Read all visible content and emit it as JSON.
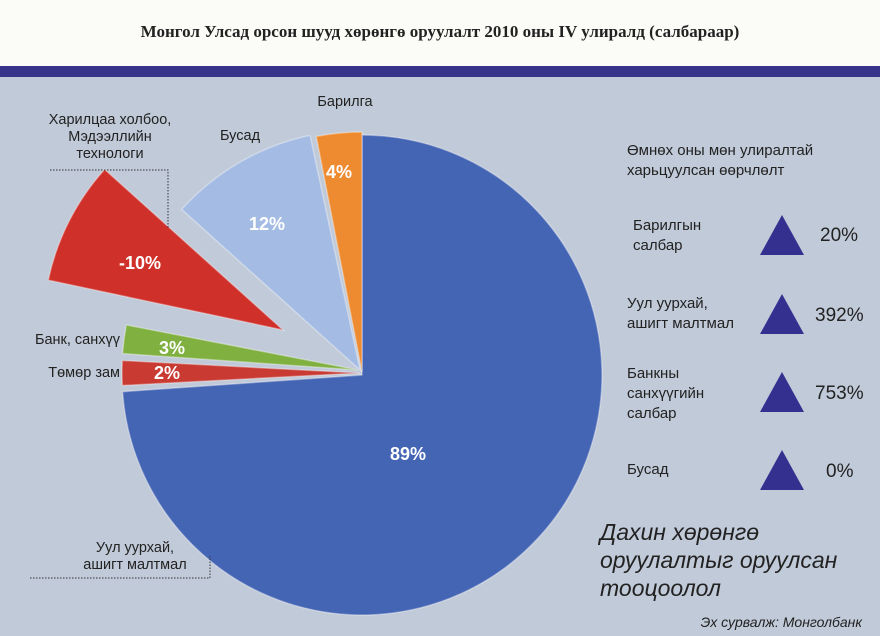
{
  "chart_data": {
    "type": "pie",
    "title": "Монгол Улсад орсон шууд хөрөнгө оруулалт 2010 оны IV улиралд (салбараар)",
    "slices": [
      {
        "name": "Уул уурхай, ашигт малтмал",
        "label": "89%",
        "value": 89,
        "color": "#4464b4"
      },
      {
        "name": "Төмөр зам",
        "label": "2%",
        "value": 2,
        "color": "#c83a32"
      },
      {
        "name": "Банк, санхүү",
        "label": "3%",
        "value": 3,
        "color": "#7fb040"
      },
      {
        "name": "Харилцаа холбоо, Мэдээллийн технологи",
        "label": "-10%",
        "value": -10,
        "color": "#d0302a"
      },
      {
        "name": "Бусад",
        "label": "12%",
        "value": 12,
        "color": "#a4bce4"
      },
      {
        "name": "Барилга",
        "label": "4%",
        "value": 4,
        "color": "#ee8a30"
      }
    ]
  },
  "changes": {
    "title_line1": "Өмнөх оны мөн улиралтай",
    "title_line2": "харьцуулсан өөрчлөлт",
    "items": [
      {
        "line1": "Барилгын",
        "line2": "салбар",
        "line3": "",
        "value": "20%",
        "direction": "up"
      },
      {
        "line1": "Уул уурхай,",
        "line2": "ашигт малтмал",
        "line3": "",
        "value": "392%",
        "direction": "up"
      },
      {
        "line1": "Банкны",
        "line2": "санхүүгийн",
        "line3": "салбар",
        "value": "753%",
        "direction": "up"
      },
      {
        "line1": "Бусад",
        "line2": "",
        "line3": "",
        "value": "0%",
        "direction": "up"
      }
    ],
    "arrow_color": "#343090"
  },
  "labels": {
    "mining_l1": "Уул уурхай,",
    "mining_l2": "ашигт малтмал",
    "rail": "Төмөр зам",
    "bank": "Банк, санхүү",
    "ict_l1": "Харилцаа холбоо,",
    "ict_l2": "Мэдээллийн",
    "ict_l3": "технологи",
    "other": "Бусад",
    "construction": "Барилга"
  },
  "note_l1": "Дахин хөрөнгө",
  "note_l2": "оруулалтыг оруулсан",
  "note_l3": "тооцоолол",
  "source": "Эх сурвалж: Монголбанк",
  "colors": {
    "band": "#37328a",
    "background": "#c1cad8"
  }
}
